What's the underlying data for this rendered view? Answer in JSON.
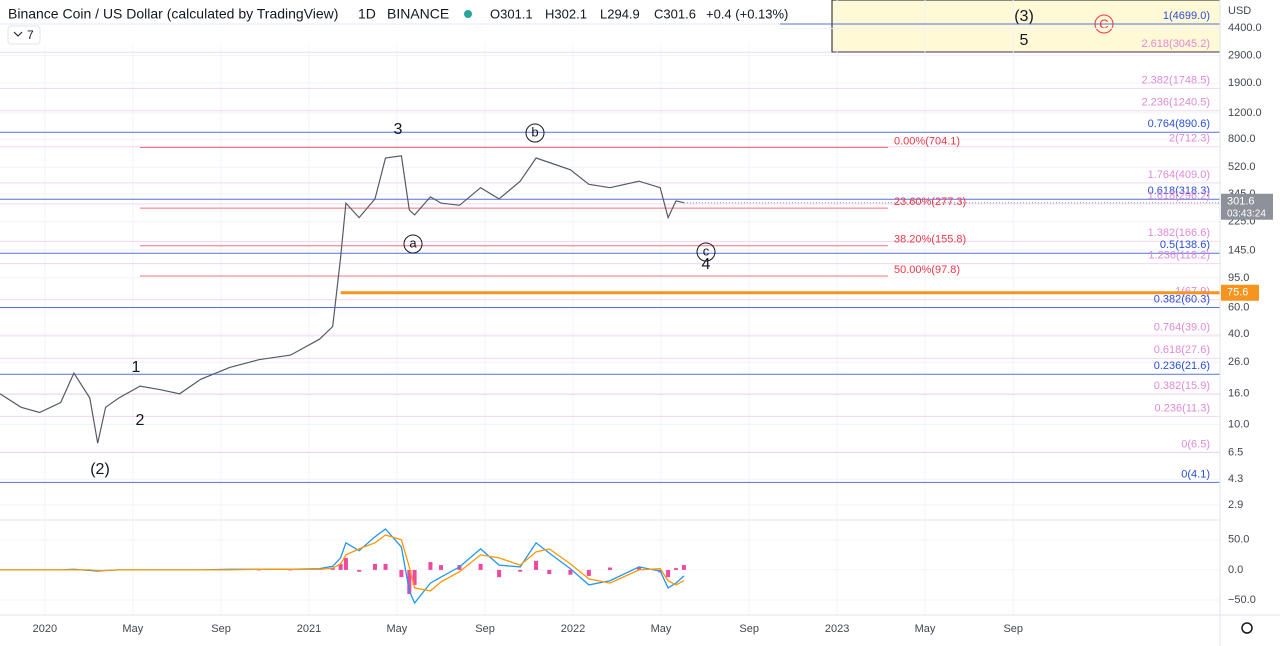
{
  "header": {
    "symbol": "Binance Coin / US Dollar (calculated by TradingView)",
    "interval": "1D",
    "exchange": "BINANCE",
    "open": "O301.1",
    "high": "H302.1",
    "low": "L294.9",
    "close": "C301.6",
    "change": "+0.4 (+0.13%)",
    "indicators": "7"
  },
  "chart_data": [
    {
      "type": "line",
      "currency": "USD",
      "color": "#555a66",
      "log_scale": true,
      "x": [
        2019.83,
        2019.91,
        2019.98,
        2020.06,
        2020.11,
        2020.17,
        2020.2,
        2020.23,
        2020.28,
        2020.36,
        2020.44,
        2020.51,
        2020.59,
        2020.7,
        2020.81,
        2020.93,
        2021.04,
        2021.09,
        2021.12,
        2021.14,
        2021.19,
        2021.25,
        2021.29,
        2021.35,
        2021.38,
        2021.4,
        2021.46,
        2021.5,
        2021.57,
        2021.65,
        2021.72,
        2021.8,
        2021.86,
        2021.91,
        2021.99,
        2022.06,
        2022.14,
        2022.25,
        2022.33,
        2022.36,
        2022.39,
        2022.42
      ],
      "values": [
        16,
        13,
        12,
        14,
        22,
        15,
        7.5,
        13,
        15,
        18,
        17,
        16,
        20,
        24,
        27,
        29,
        37,
        45,
        130,
        300,
        240,
        320,
        600,
        620,
        270,
        250,
        330,
        300,
        290,
        380,
        320,
        420,
        600,
        560,
        500,
        400,
        380,
        420,
        380,
        240,
        310,
        301.6
      ],
      "xlim": [
        2019.83,
        2024.45
      ],
      "xticks": [
        {
          "value": 2020,
          "label": "2020"
        },
        {
          "value": 2020.333,
          "label": "May"
        },
        {
          "value": 2020.667,
          "label": "Sep"
        },
        {
          "value": 2021,
          "label": "2021"
        },
        {
          "value": 2021.333,
          "label": "May"
        },
        {
          "value": 2021.667,
          "label": "Sep"
        },
        {
          "value": 2022,
          "label": "2022"
        },
        {
          "value": 2022.333,
          "label": "May"
        },
        {
          "value": 2022.667,
          "label": "Sep"
        },
        {
          "value": 2023,
          "label": "2023"
        },
        {
          "value": 2023.333,
          "label": "May"
        },
        {
          "value": 2023.667,
          "label": "Sep"
        }
      ],
      "ylim": [
        2.3,
        6800
      ],
      "yticks": [
        {
          "value": 4400,
          "label": "4400.0"
        },
        {
          "value": 2900,
          "label": "2900.0"
        },
        {
          "value": 1900,
          "label": "1900.0"
        },
        {
          "value": 1200,
          "label": "1200.0"
        },
        {
          "value": 800,
          "label": "800.0"
        },
        {
          "value": 520,
          "label": "520.0"
        },
        {
          "value": 345,
          "label": "345.0"
        },
        {
          "value": 225,
          "label": "225.0"
        },
        {
          "value": 145,
          "label": "145.0"
        },
        {
          "value": 95,
          "label": "95.0"
        },
        {
          "value": 60,
          "label": "60.0"
        },
        {
          "value": 40,
          "label": "40.0"
        },
        {
          "value": 26,
          "label": "26.0"
        },
        {
          "value": 16,
          "label": "16.0"
        },
        {
          "value": 10,
          "label": "10.0"
        },
        6.5,
        4.3,
        2.9
      ],
      "fib_levels": [
        {
          "label": "1(4699.0)",
          "value": 4699,
          "color": "#2a4fd6"
        },
        {
          "label": "2.618(3045.2)",
          "value": 3045.2,
          "color": "#e08ad8"
        },
        {
          "label": "2.382(1748.5)",
          "value": 1748.5,
          "color": "#e08ad8"
        },
        {
          "label": "2.236(1240.5)",
          "value": 1240.5,
          "color": "#e08ad8"
        },
        {
          "label": "0.764(890.6)",
          "value": 890.6,
          "color": "#2a4fd6"
        },
        {
          "label": "2(712.3)",
          "value": 712.3,
          "color": "#e08ad8"
        },
        {
          "label": "1.764(409.0)",
          "value": 409,
          "color": "#e08ad8"
        },
        {
          "label": "0.618(318.3)",
          "value": 318.3,
          "color": "#2a4fd6"
        },
        {
          "label": "1.618(296.2)",
          "value": 296.2,
          "color": "#e08ad8"
        },
        {
          "label": "1.382(166.6)",
          "value": 166.6,
          "color": "#e08ad8"
        },
        {
          "label": "0.5(138.6)",
          "value": 138.6,
          "color": "#2a4fd6"
        },
        {
          "label": "1.236(118.2)",
          "value": 118.2,
          "color": "#e08ad8"
        },
        {
          "label": "1(67.9)",
          "value": 67.9,
          "color": "#e08ad8"
        },
        {
          "label": "0.382(60.3)",
          "value": 60.3,
          "color": "#2a4fd6"
        },
        {
          "label": "0.764(39.0)",
          "value": 39,
          "color": "#e08ad8"
        },
        {
          "label": "0.618(27.6)",
          "value": 27.6,
          "color": "#e08ad8"
        },
        {
          "label": "0.236(21.6)",
          "value": 21.6,
          "color": "#2a4fd6"
        },
        {
          "label": "0.382(15.9)",
          "value": 15.9,
          "color": "#e08ad8"
        },
        {
          "label": "0.236(11.3)",
          "value": 11.3,
          "color": "#e08ad8"
        },
        {
          "label": "0(6.5)",
          "value": 6.5,
          "color": "#e08ad8"
        },
        {
          "label": "0(4.1)",
          "value": 4.1,
          "color": "#2a4fd6"
        }
      ],
      "retracements": [
        {
          "label": "0.00%(704.1)",
          "value": 704.1,
          "color": "#f23645"
        },
        {
          "label": "23.60%(277.3)",
          "value": 277.3,
          "color": "#f23645"
        },
        {
          "label": "38.20%(155.8)",
          "value": 155.8,
          "color": "#f23645"
        },
        {
          "label": "50.00%(97.8)",
          "value": 97.8,
          "color": "#f23645"
        }
      ],
      "support": {
        "value": 75.6,
        "color": "#f7941d"
      },
      "last_price": {
        "value": 301.6,
        "countdown": "03:43:24",
        "color": "#8d9199"
      },
      "waves": {
        "w3": "3",
        "wb": "b",
        "wa": "a",
        "wc": "c",
        "w4": "4",
        "w1": "1",
        "w2": "2",
        "w2p": "(2)",
        "box3": "(3)",
        "box5": "5",
        "boxC": "C"
      }
    },
    {
      "type": "macd",
      "macd": {
        "color": "#2196f3",
        "values": [
          0,
          0,
          0,
          0,
          1,
          -1,
          -2,
          -1,
          0,
          0,
          0,
          0,
          0,
          1,
          1,
          1,
          2,
          6,
          20,
          45,
          32,
          55,
          68,
          38,
          -35,
          -55,
          -22,
          -12,
          5,
          35,
          8,
          5,
          45,
          28,
          2,
          -25,
          -18,
          5,
          -2,
          -30,
          -22,
          -10
        ]
      },
      "signal": {
        "color": "#ff9800",
        "values": [
          0,
          0,
          0,
          0,
          0,
          0,
          -1,
          -1,
          0,
          0,
          0,
          0,
          0,
          0,
          1,
          1,
          1,
          3,
          10,
          25,
          35,
          45,
          58,
          50,
          5,
          -30,
          -35,
          -20,
          -3,
          25,
          20,
          8,
          30,
          35,
          10,
          -15,
          -22,
          0,
          2,
          -18,
          -25,
          -18
        ]
      },
      "histogram": {
        "color": "#f048a0",
        "values": [
          0,
          0,
          0,
          0,
          1,
          -1,
          -1,
          0,
          0,
          0,
          0,
          0,
          0,
          1,
          0,
          0,
          1,
          3,
          10,
          20,
          -3,
          10,
          10,
          -12,
          -40,
          -25,
          13,
          8,
          8,
          10,
          -12,
          -3,
          15,
          -7,
          -8,
          -10,
          4,
          5,
          -4,
          -12,
          3,
          8
        ]
      },
      "ylim": [
        -75,
        83
      ],
      "yticks": [
        {
          "value": 50,
          "label": "50.0"
        },
        {
          "value": 0,
          "label": "0.0"
        },
        {
          "value": -50,
          "label": "−50.0"
        }
      ]
    }
  ]
}
